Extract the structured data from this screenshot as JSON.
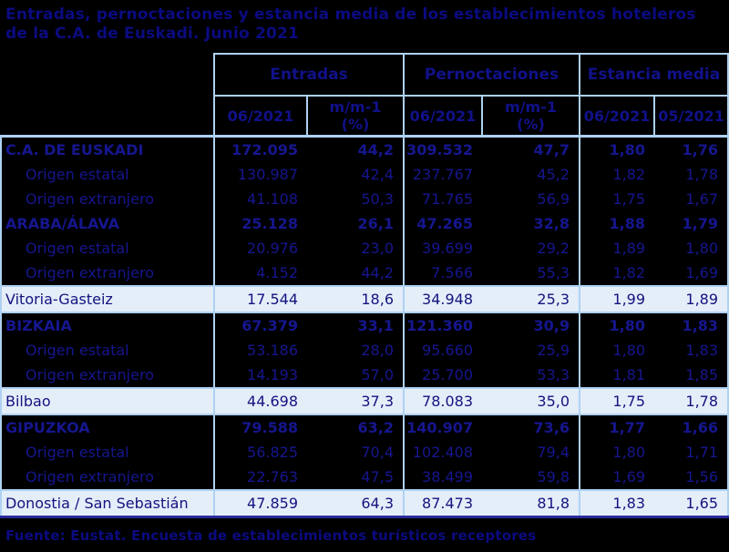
{
  "title": {
    "line1": "Entradas, pernoctaciones y estancia media de los establecimientos hoteleros",
    "line2": "de la C.A. de Euskadi. Junio 2021"
  },
  "colors": {
    "background": "#000000",
    "text_navy": "#11118a",
    "border_light_blue": "#aed1f2",
    "highlight_row_bg": "#e4eef9",
    "table_bottom_border": "#2a2a9a"
  },
  "table": {
    "groups": [
      {
        "label": "Entradas"
      },
      {
        "label": "Pernoctaciones"
      },
      {
        "label": "Estancia media"
      }
    ],
    "subheaders": [
      "06/2021",
      "m/m-1\n(%)",
      "06/2021",
      "m/m-1\n(%)",
      "06/2021",
      "05/2021"
    ],
    "rows": [
      {
        "label": "C.A. DE EUSKADI",
        "style": "section",
        "values": [
          "172.095",
          "44,2",
          "309.532",
          "47,7",
          "1,80",
          "1,76"
        ]
      },
      {
        "label": "Origen estatal",
        "style": "sub",
        "values": [
          "130.987",
          "42,4",
          "237.767",
          "45,2",
          "1,82",
          "1,78"
        ]
      },
      {
        "label": "Origen extranjero",
        "style": "sub",
        "values": [
          "41.108",
          "50,3",
          "71.765",
          "56,9",
          "1,75",
          "1,67"
        ]
      },
      {
        "label": "ARABA/ÁLAVA",
        "style": "section",
        "values": [
          "25.128",
          "26,1",
          "47.265",
          "32,8",
          "1,88",
          "1,79"
        ]
      },
      {
        "label": "Origen estatal",
        "style": "sub",
        "values": [
          "20.976",
          "23,0",
          "39.699",
          "29,2",
          "1,89",
          "1,80"
        ]
      },
      {
        "label": "Origen extranjero",
        "style": "sub",
        "values": [
          "4.152",
          "44,2",
          "7.566",
          "55,3",
          "1,82",
          "1,69"
        ]
      },
      {
        "label": "Vitoria-Gasteiz",
        "style": "city",
        "values": [
          "17.544",
          "18,6",
          "34.948",
          "25,3",
          "1,99",
          "1,89"
        ]
      },
      {
        "label": "BIZKAIA",
        "style": "section",
        "values": [
          "67.379",
          "33,1",
          "121.360",
          "30,9",
          "1,80",
          "1,83"
        ]
      },
      {
        "label": "Origen estatal",
        "style": "sub",
        "values": [
          "53.186",
          "28,0",
          "95.660",
          "25,9",
          "1,80",
          "1,83"
        ]
      },
      {
        "label": "Origen extranjero",
        "style": "sub",
        "values": [
          "14.193",
          "57,0",
          "25.700",
          "53,3",
          "1,81",
          "1,85"
        ]
      },
      {
        "label": "Bilbao",
        "style": "city",
        "values": [
          "44.698",
          "37,3",
          "78.083",
          "35,0",
          "1,75",
          "1,78"
        ]
      },
      {
        "label": "GIPUZKOA",
        "style": "section",
        "values": [
          "79.588",
          "63,2",
          "140.907",
          "73,6",
          "1,77",
          "1,66"
        ]
      },
      {
        "label": "Origen estatal",
        "style": "sub",
        "values": [
          "56.825",
          "70,4",
          "102.408",
          "79,4",
          "1,80",
          "1,71"
        ]
      },
      {
        "label": "Origen extranjero",
        "style": "sub",
        "values": [
          "22.763",
          "47,5",
          "38.499",
          "59,8",
          "1,69",
          "1,56"
        ]
      },
      {
        "label": "Donostia / San Sebastián",
        "style": "city",
        "values": [
          "47.859",
          "64,3",
          "87.473",
          "81,8",
          "1,83",
          "1,65"
        ]
      }
    ]
  },
  "footer": {
    "source": "Fuente: Eustat. Encuesta de establecimientos turísticos receptores"
  }
}
